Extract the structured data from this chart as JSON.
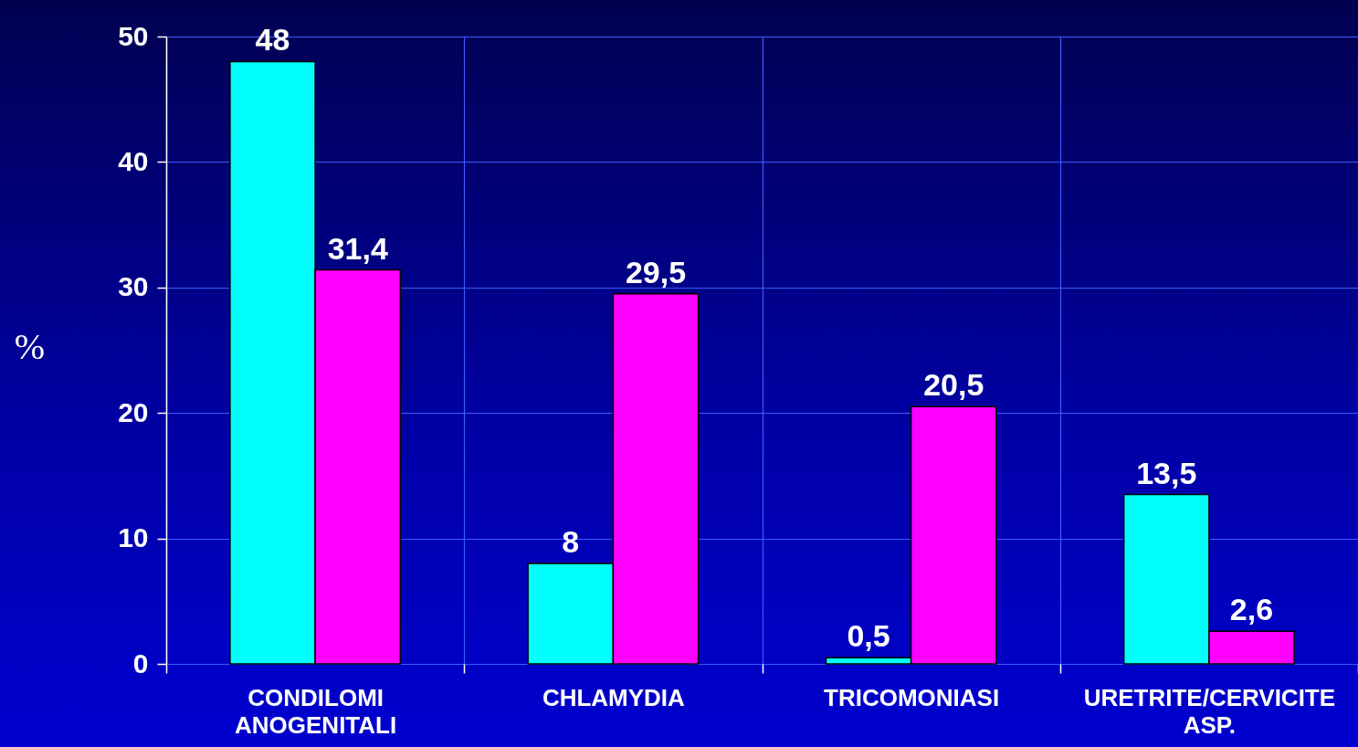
{
  "chart_data": {
    "type": "bar",
    "ylabel": "%",
    "categories": [
      "CONDILOMI ANOGENITALI",
      "CHLAMYDIA",
      "TRICOMONIASI",
      "URETRITE/CERVICITE ASP."
    ],
    "series": [
      {
        "color": "#00ffff",
        "values": [
          48,
          8,
          0.5,
          13.5
        ],
        "value_labels": [
          "48",
          "8",
          "0,5",
          "13,5"
        ]
      },
      {
        "color": "#ff00ff",
        "values": [
          31.4,
          29.5,
          20.5,
          2.6
        ],
        "value_labels": [
          "31,4",
          "29,5",
          "20,5",
          "2,6"
        ]
      }
    ],
    "ylim": [
      0,
      50
    ],
    "yticks": [
      0,
      10,
      20,
      30,
      40,
      50
    ],
    "grid": true,
    "legend": false
  }
}
